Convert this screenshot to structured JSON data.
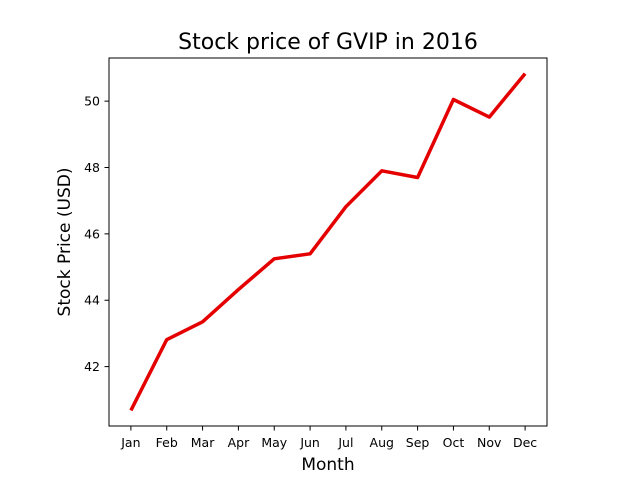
{
  "chart_data": {
    "type": "line",
    "title": "Stock price of GVIP in 2016",
    "xlabel": "Month",
    "ylabel": "Stock Price (USD)",
    "categories": [
      "Jan",
      "Feb",
      "Mar",
      "Apr",
      "May",
      "Jun",
      "Jul",
      "Aug",
      "Sep",
      "Oct",
      "Nov",
      "Dec"
    ],
    "values": [
      40.68,
      42.81,
      43.35,
      44.32,
      45.25,
      45.4,
      46.82,
      47.9,
      47.7,
      50.05,
      49.52,
      50.83
    ],
    "ylim": [
      40.21,
      51.3
    ],
    "yticks": [
      42,
      44,
      46,
      48,
      50
    ],
    "grid": false,
    "line_color": "#e50000"
  }
}
